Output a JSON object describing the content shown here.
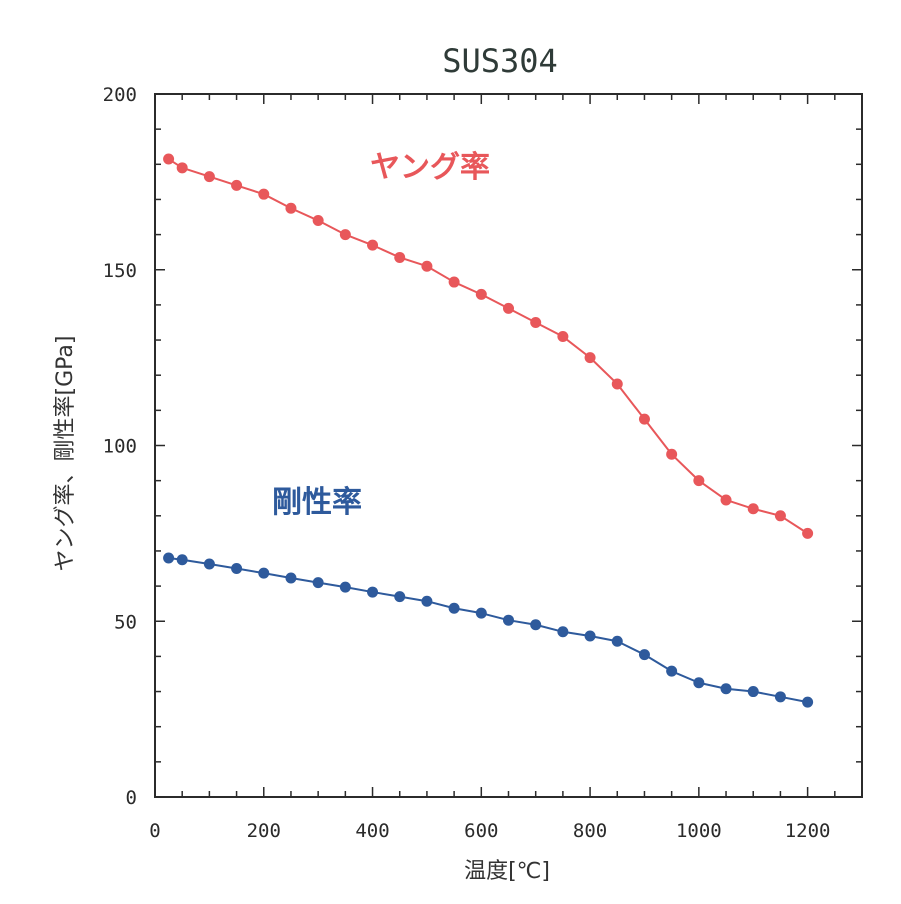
{
  "chart_data": {
    "type": "line",
    "title": "SUS304",
    "xlabel": "温度[℃]",
    "ylabel": "ヤング率、剛性率[GPa]",
    "xlim": [
      0,
      1300
    ],
    "ylim": [
      0,
      200
    ],
    "x_ticks": [
      "0",
      "200",
      "400",
      "600",
      "800",
      "1000",
      "1200"
    ],
    "y_ticks": [
      "0",
      "50",
      "100",
      "150",
      "200"
    ],
    "grid": false,
    "series": [
      {
        "name": "ヤング率",
        "color": "#e8575a",
        "x": [
          25,
          50,
          100,
          150,
          200,
          250,
          300,
          350,
          400,
          450,
          500,
          550,
          600,
          650,
          700,
          750,
          800,
          850,
          900,
          950,
          1000,
          1050,
          1100,
          1150,
          1200
        ],
        "y": [
          181.5,
          179,
          176.5,
          174,
          171.5,
          167.5,
          164,
          160,
          157,
          153.5,
          151,
          146.5,
          143,
          139,
          135,
          131,
          125,
          117.5,
          107.5,
          97.5,
          90,
          84.5,
          82,
          80,
          75
        ]
      },
      {
        "name": "剛性率",
        "color": "#2e5a9c",
        "x": [
          25,
          50,
          100,
          150,
          200,
          250,
          300,
          350,
          400,
          450,
          500,
          550,
          600,
          650,
          700,
          750,
          800,
          850,
          900,
          950,
          1000,
          1050,
          1100,
          1150,
          1200
        ],
        "y": [
          68,
          67.5,
          66.3,
          65,
          63.7,
          62.3,
          61,
          59.7,
          58.3,
          57,
          55.7,
          53.7,
          52.3,
          50.3,
          49,
          47,
          45.8,
          44.3,
          40.5,
          35.8,
          32.5,
          30.8,
          30,
          28.5,
          27
        ]
      }
    ]
  }
}
